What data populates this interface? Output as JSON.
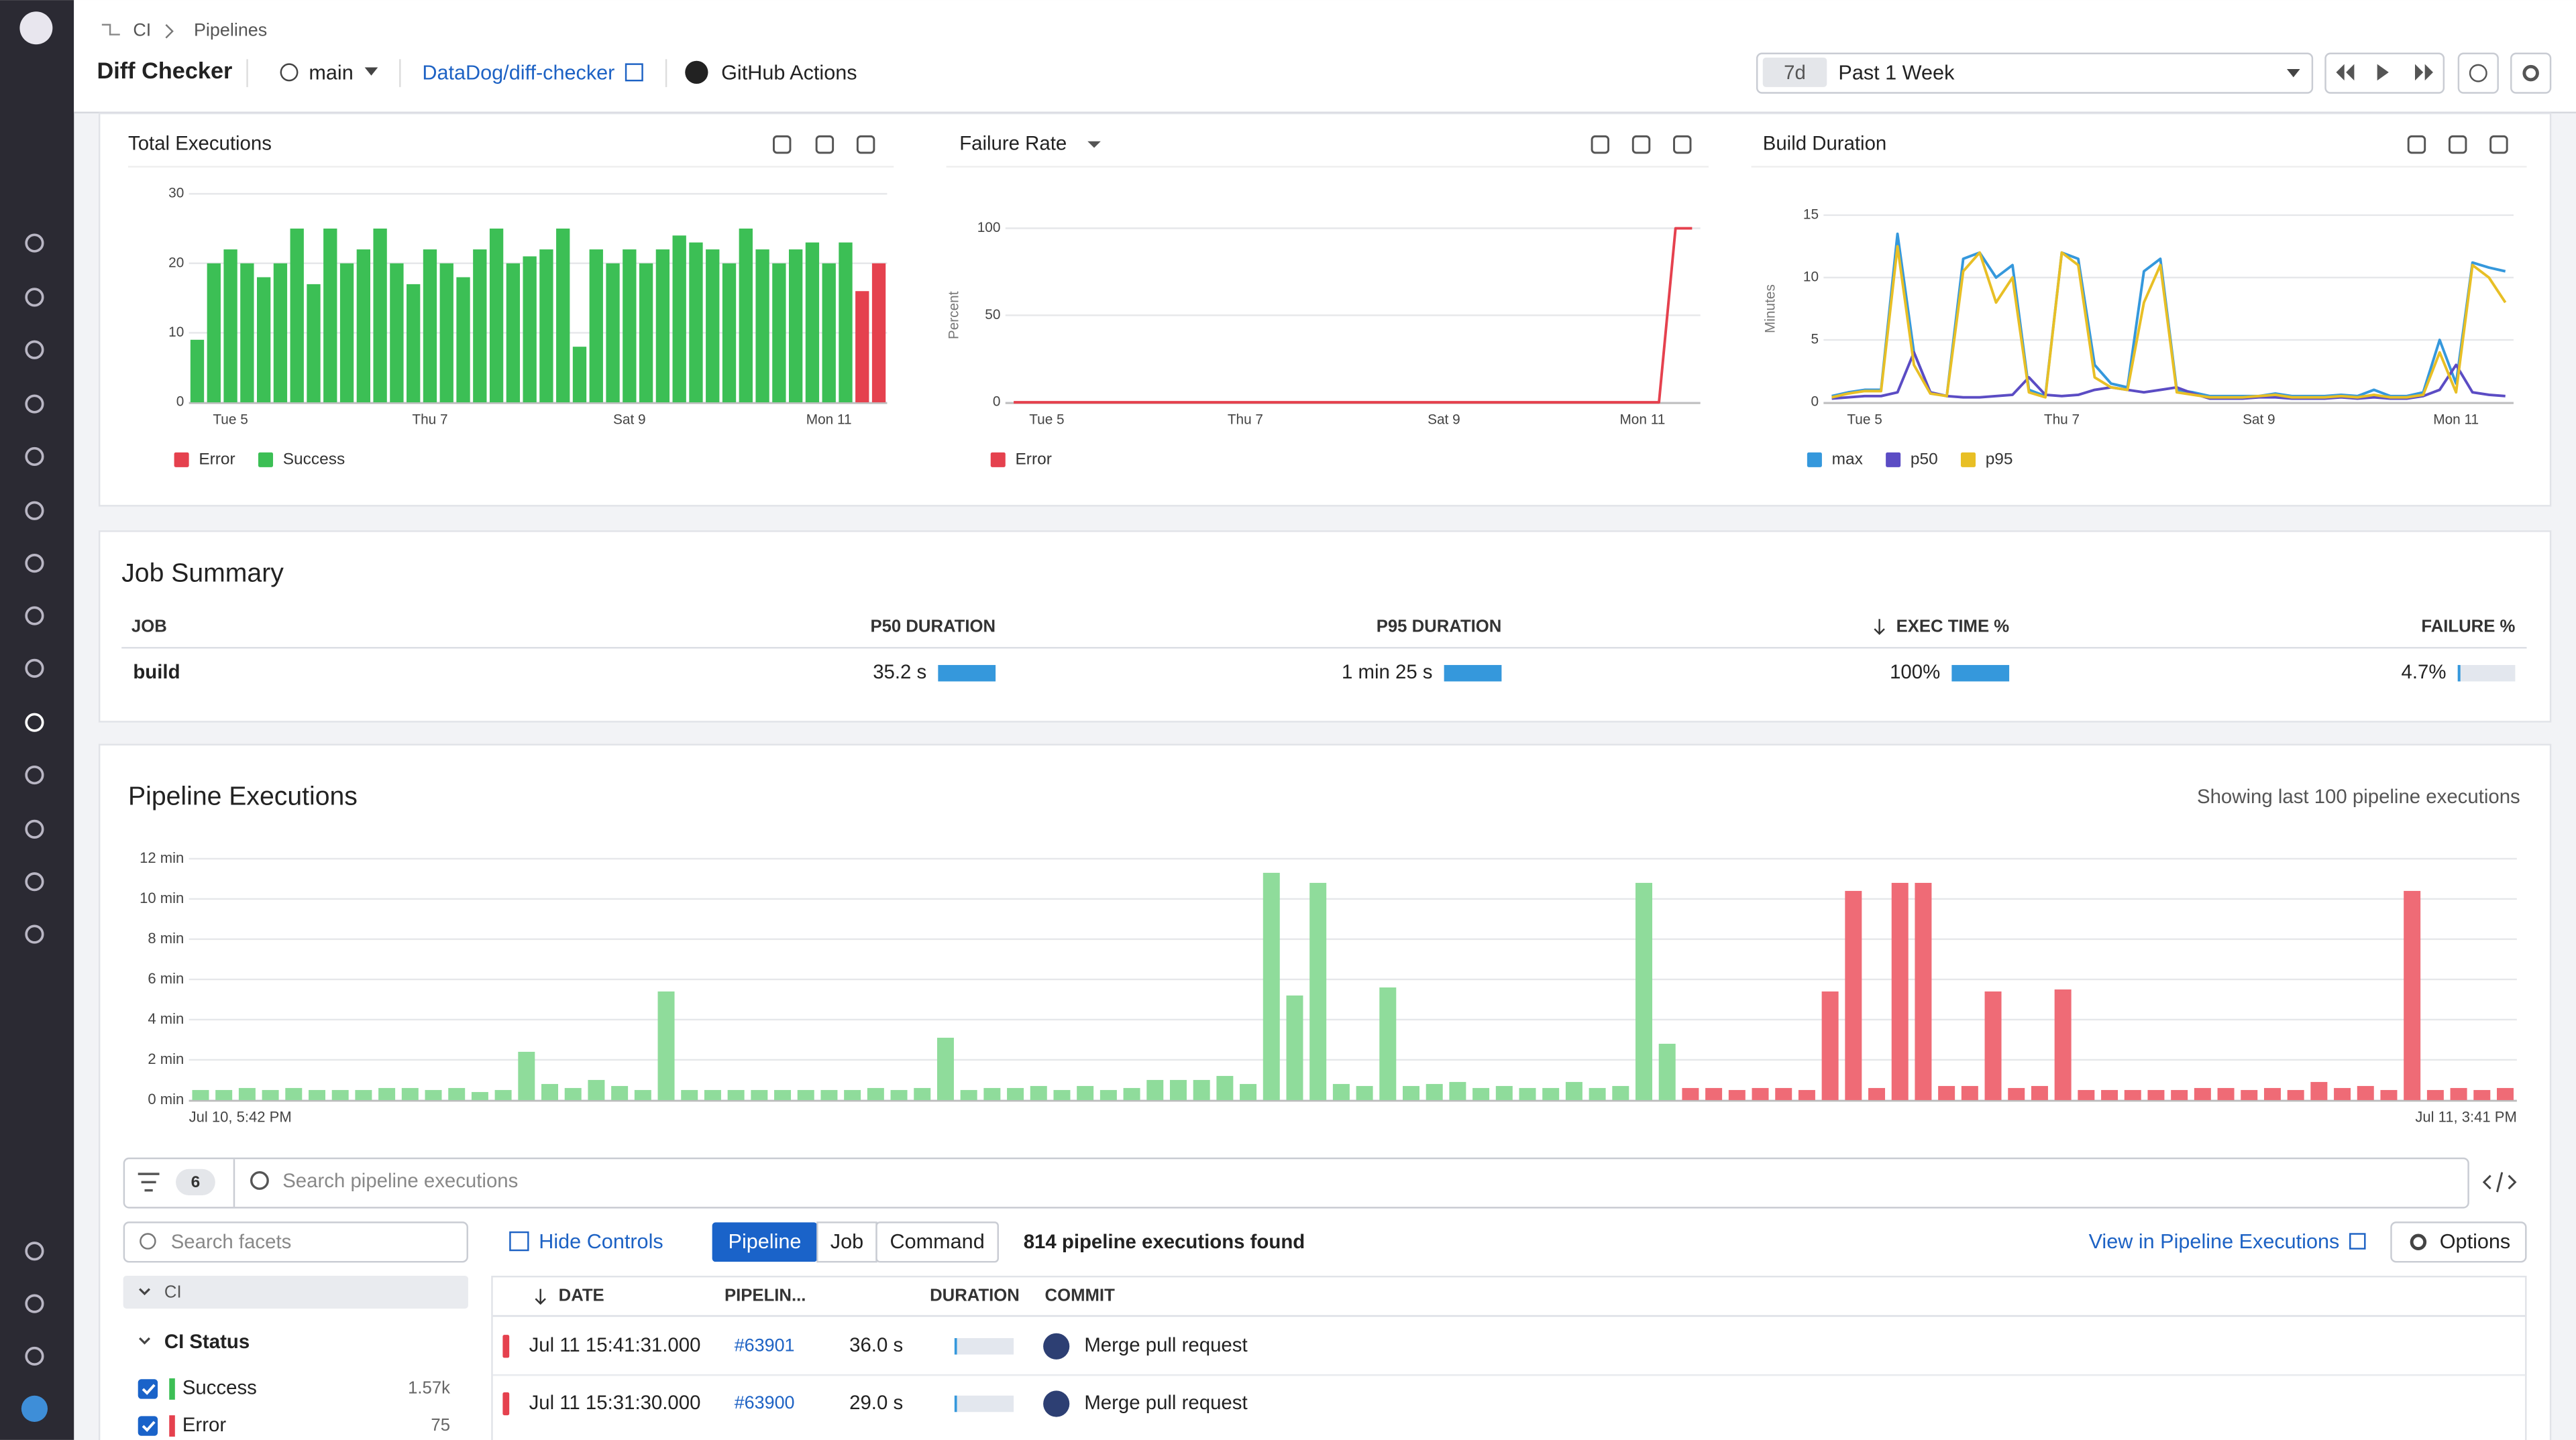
{
  "breadcrumb": [
    "CI",
    "Pipelines"
  ],
  "header": {
    "title": "Diff Checker",
    "branch": "main",
    "repo": "DataDog/diff-checker",
    "provider": "GitHub Actions",
    "time_short": "7d",
    "time_range": "Past 1 Week"
  },
  "chart_data": [
    {
      "type": "bar",
      "title": "Total Executions",
      "grid": true,
      "categories": [
        null,
        null,
        "Tue 5",
        null,
        null,
        null,
        null,
        null,
        null,
        null,
        null,
        null,
        null,
        null,
        "Thu 7",
        null,
        null,
        null,
        null,
        null,
        null,
        null,
        null,
        null,
        null,
        null,
        "Sat 9",
        null,
        null,
        null,
        null,
        null,
        null,
        null,
        null,
        null,
        null,
        null,
        "Mon 11",
        null,
        null,
        null
      ],
      "ylim": [
        0,
        30
      ],
      "yticks": [
        0,
        10,
        20,
        30
      ],
      "series": [
        {
          "name": "Error",
          "color": "#e5414e",
          "values": [
            0,
            0,
            0,
            0,
            0,
            0,
            0,
            0,
            0,
            0,
            0,
            0,
            0,
            0,
            0,
            0,
            0,
            0,
            0,
            0,
            0,
            0,
            0,
            0,
            0,
            0,
            0,
            0,
            0,
            0,
            0,
            0,
            0,
            0,
            0,
            0,
            0,
            0,
            0,
            0,
            16,
            20
          ]
        },
        {
          "name": "Success",
          "color": "#3cbf55",
          "values": [
            9,
            20,
            22,
            20,
            18,
            20,
            25,
            17,
            25,
            20,
            22,
            25,
            20,
            17,
            22,
            20,
            18,
            22,
            25,
            20,
            21,
            22,
            25,
            8,
            22,
            20,
            22,
            20,
            22,
            24,
            23,
            22,
            20,
            25,
            22,
            20,
            22,
            23,
            20,
            23,
            0,
            0
          ]
        }
      ]
    },
    {
      "type": "line",
      "title": "Failure Rate",
      "ylabel": "Percent",
      "grid": true,
      "categories": [
        null,
        null,
        "Tue 5",
        null,
        null,
        null,
        null,
        null,
        null,
        null,
        null,
        null,
        null,
        null,
        "Thu 7",
        null,
        null,
        null,
        null,
        null,
        null,
        null,
        null,
        null,
        null,
        null,
        "Sat 9",
        null,
        null,
        null,
        null,
        null,
        null,
        null,
        null,
        null,
        null,
        null,
        "Mon 11",
        null,
        null,
        null
      ],
      "ylim": [
        0,
        100
      ],
      "yticks": [
        0,
        50,
        100
      ],
      "series": [
        {
          "name": "Error",
          "color": "#e5414e",
          "values": [
            0,
            0,
            0,
            0,
            0,
            0,
            0,
            0,
            0,
            0,
            0,
            0,
            0,
            0,
            0,
            0,
            0,
            0,
            0,
            0,
            0,
            0,
            0,
            0,
            0,
            0,
            0,
            0,
            0,
            0,
            0,
            0,
            0,
            0,
            0,
            0,
            0,
            0,
            0,
            0,
            100,
            100
          ]
        }
      ]
    },
    {
      "type": "line",
      "title": "Build Duration",
      "ylabel": "Minutes",
      "grid": true,
      "categories": [
        null,
        null,
        "Tue 5",
        null,
        null,
        null,
        null,
        null,
        null,
        null,
        null,
        null,
        null,
        null,
        "Thu 7",
        null,
        null,
        null,
        null,
        null,
        null,
        null,
        null,
        null,
        null,
        null,
        "Sat 9",
        null,
        null,
        null,
        null,
        null,
        null,
        null,
        null,
        null,
        null,
        null,
        "Mon 11",
        null,
        null,
        null
      ],
      "ylim": [
        0,
        15
      ],
      "yticks": [
        0,
        5,
        10,
        15
      ],
      "series": [
        {
          "name": "max",
          "color": "#3598dc",
          "values": [
            0.5,
            0.8,
            1,
            1,
            13.5,
            4,
            0.8,
            0.5,
            11.5,
            12,
            10,
            11,
            1,
            0.5,
            12,
            11.5,
            3,
            1.5,
            1.2,
            10.5,
            11.5,
            1,
            0.8,
            0.5,
            0.5,
            0.5,
            0.5,
            0.7,
            0.5,
            0.5,
            0.5,
            0.6,
            0.5,
            1,
            0.5,
            0.5,
            0.8,
            5,
            1.5,
            11.2,
            10.8,
            10.5
          ]
        },
        {
          "name": "p50",
          "color": "#5b4cc4",
          "values": [
            0.3,
            0.4,
            0.5,
            0.5,
            0.8,
            4,
            0.8,
            0.5,
            0.4,
            0.4,
            0.5,
            0.6,
            2,
            0.6,
            0.5,
            0.6,
            1,
            1.2,
            1,
            0.8,
            1,
            1.2,
            0.7,
            0.3,
            0.3,
            0.3,
            0.4,
            0.4,
            0.3,
            0.3,
            0.3,
            0.4,
            0.3,
            0.4,
            0.3,
            0.3,
            0.5,
            1,
            3,
            0.8,
            0.6,
            0.5
          ]
        },
        {
          "name": "p95",
          "color": "#e8bf25",
          "values": [
            0.4,
            0.7,
            0.9,
            0.9,
            12.5,
            3,
            0.7,
            0.5,
            10.5,
            12,
            8,
            10,
            0.8,
            0.4,
            12,
            11,
            2,
            1.2,
            1,
            8,
            11,
            0.8,
            0.6,
            0.4,
            0.4,
            0.4,
            0.5,
            0.6,
            0.4,
            0.4,
            0.4,
            0.5,
            0.4,
            0.6,
            0.4,
            0.4,
            0.6,
            4,
            0.8,
            11,
            10,
            8
          ]
        }
      ]
    },
    {
      "type": "bar",
      "title": "Pipeline Executions",
      "subtitle": "Showing last 100 pipeline executions",
      "grid": true,
      "categories": [
        "Jul 10, 5:42 PM",
        null,
        null,
        null,
        null,
        null,
        null,
        null,
        null,
        null,
        null,
        null,
        null,
        null,
        null,
        null,
        null,
        null,
        null,
        null,
        null,
        null,
        null,
        null,
        null,
        null,
        null,
        null,
        null,
        null,
        null,
        null,
        null,
        null,
        null,
        null,
        null,
        null,
        null,
        null,
        null,
        null,
        null,
        null,
        null,
        null,
        null,
        null,
        null,
        null,
        null,
        null,
        null,
        null,
        null,
        null,
        null,
        null,
        null,
        null,
        null,
        null,
        null,
        null,
        null,
        null,
        null,
        null,
        null,
        null,
        null,
        null,
        null,
        null,
        null,
        null,
        null,
        null,
        null,
        null,
        null,
        null,
        null,
        null,
        null,
        null,
        null,
        null,
        null,
        null,
        null,
        null,
        null,
        null,
        null,
        null,
        null,
        null,
        null,
        "Jul 11, 3:41 PM"
      ],
      "ylim": [
        0,
        12
      ],
      "yticks": [
        {
          "value": 0,
          "label": "0 min"
        },
        {
          "value": 2,
          "label": "2 min"
        },
        {
          "value": 4,
          "label": "4 min"
        },
        {
          "value": 6,
          "label": "6 min"
        },
        {
          "value": 8,
          "label": "8 min"
        },
        {
          "value": 10,
          "label": "10 min"
        },
        {
          "value": 12,
          "label": "12 min"
        }
      ],
      "values": [
        0.5,
        0.5,
        0.6,
        0.5,
        0.6,
        0.5,
        0.5,
        0.5,
        0.6,
        0.6,
        0.5,
        0.6,
        0.4,
        0.5,
        2.4,
        0.8,
        0.6,
        1.0,
        0.7,
        0.5,
        5.4,
        0.5,
        0.5,
        0.5,
        0.5,
        0.5,
        0.5,
        0.5,
        0.5,
        0.6,
        0.5,
        0.6,
        3.1,
        0.5,
        0.6,
        0.6,
        0.7,
        0.5,
        0.7,
        0.5,
        0.6,
        1.0,
        1.0,
        1.0,
        1.2,
        0.8,
        11.3,
        5.2,
        10.8,
        0.8,
        0.7,
        5.6,
        0.7,
        0.8,
        0.9,
        0.6,
        0.7,
        0.6,
        0.6,
        0.9,
        0.6,
        0.7,
        10.8,
        2.8,
        0.6,
        0.6,
        0.5,
        0.6,
        0.6,
        0.5,
        5.4,
        10.4,
        0.6,
        10.8,
        10.8,
        0.7,
        0.7,
        5.4,
        0.6,
        0.7,
        5.5,
        0.5,
        0.5,
        0.5,
        0.5,
        0.5,
        0.6,
        0.6,
        0.5,
        0.6,
        0.5,
        0.9,
        0.6,
        0.7,
        0.5,
        10.4,
        0.5,
        0.6,
        0.5,
        0.6
      ],
      "colors": [
        "#8fdc9b",
        "#8fdc9b",
        "#8fdc9b",
        "#8fdc9b",
        "#8fdc9b",
        "#8fdc9b",
        "#8fdc9b",
        "#8fdc9b",
        "#8fdc9b",
        "#8fdc9b",
        "#8fdc9b",
        "#8fdc9b",
        "#8fdc9b",
        "#8fdc9b",
        "#8fdc9b",
        "#8fdc9b",
        "#8fdc9b",
        "#8fdc9b",
        "#8fdc9b",
        "#8fdc9b",
        "#8fdc9b",
        "#8fdc9b",
        "#8fdc9b",
        "#8fdc9b",
        "#8fdc9b",
        "#8fdc9b",
        "#8fdc9b",
        "#8fdc9b",
        "#8fdc9b",
        "#8fdc9b",
        "#8fdc9b",
        "#8fdc9b",
        "#8fdc9b",
        "#8fdc9b",
        "#8fdc9b",
        "#8fdc9b",
        "#8fdc9b",
        "#8fdc9b",
        "#8fdc9b",
        "#8fdc9b",
        "#8fdc9b",
        "#8fdc9b",
        "#8fdc9b",
        "#8fdc9b",
        "#8fdc9b",
        "#8fdc9b",
        "#8fdc9b",
        "#8fdc9b",
        "#8fdc9b",
        "#8fdc9b",
        "#8fdc9b",
        "#8fdc9b",
        "#8fdc9b",
        "#8fdc9b",
        "#8fdc9b",
        "#8fdc9b",
        "#8fdc9b",
        "#8fdc9b",
        "#8fdc9b",
        "#8fdc9b",
        "#8fdc9b",
        "#8fdc9b",
        "#8fdc9b",
        "#8fdc9b",
        "#ef6b76",
        "#ef6b76",
        "#ef6b76",
        "#ef6b76",
        "#ef6b76",
        "#ef6b76",
        "#ef6b76",
        "#ef6b76",
        "#ef6b76",
        "#ef6b76",
        "#ef6b76",
        "#ef6b76",
        "#ef6b76",
        "#ef6b76",
        "#ef6b76",
        "#ef6b76",
        "#ef6b76",
        "#ef6b76",
        "#ef6b76",
        "#ef6b76",
        "#ef6b76",
        "#ef6b76",
        "#ef6b76",
        "#ef6b76",
        "#ef6b76",
        "#ef6b76",
        "#ef6b76",
        "#ef6b76",
        "#ef6b76",
        "#ef6b76",
        "#ef6b76",
        "#ef6b76",
        "#ef6b76",
        "#ef6b76",
        "#ef6b76",
        "#ef6b76"
      ]
    }
  ],
  "job_summary": {
    "title": "Job Summary",
    "columns": [
      "JOB",
      "P50 DURATION",
      "P95 DURATION",
      "EXEC TIME %",
      "FAILURE %"
    ],
    "xlims": [
      [
        0,
        35.2
      ],
      [
        0,
        85
      ],
      [
        0,
        100
      ],
      [
        0,
        100
      ]
    ],
    "rows": [
      {
        "job": "build",
        "values": [
          35.2,
          85,
          100,
          4.7
        ],
        "value_labels": [
          "35.2 s",
          "1 min 25 s",
          "100%",
          "4.7%"
        ]
      }
    ]
  },
  "executions": {
    "filter_count": 6,
    "search_placeholder": "Search pipeline executions",
    "search_facets": "Search facets",
    "hide_controls": "Hide Controls",
    "tabs": [
      "Pipeline",
      "Job",
      "Command"
    ],
    "count_text": "814 pipeline executions found",
    "view_link": "View in Pipeline Executions",
    "options": "Options",
    "facets": {
      "group": "CI",
      "title": "CI Status",
      "items": [
        {
          "name": "Success",
          "count": "1.57k",
          "color": "#3cbf55"
        },
        {
          "name": "Error",
          "count": "75",
          "color": "#e5414e"
        }
      ]
    },
    "columns": [
      "DATE",
      "PIPELIN...",
      "DURATION",
      "COMMIT"
    ],
    "rows": [
      [
        "Jul 11 15:41:31.000",
        "#63901",
        "36.0 s",
        "Merge pull request"
      ],
      [
        "Jul 11 15:31:30.000",
        "#63900",
        "29.0 s",
        "Merge pull request"
      ]
    ]
  }
}
